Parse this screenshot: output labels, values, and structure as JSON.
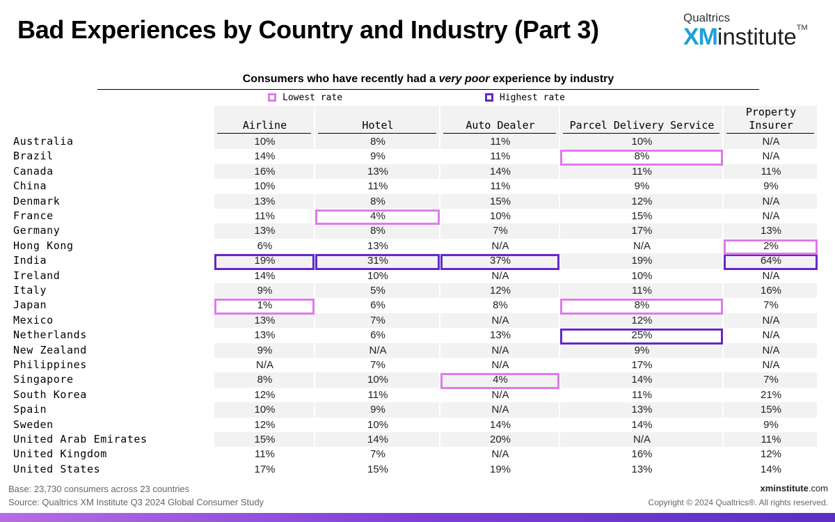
{
  "title": "Bad Experiences by Country and Industry (Part 3)",
  "logo": {
    "top": "Qualtrics",
    "xm": "XM",
    "institute": "institute",
    "tm": "TM"
  },
  "subtitle_pre": "Consumers who have recently had a ",
  "subtitle_em": "very poor",
  "subtitle_post": " experience by industry",
  "legend": {
    "low": "Lowest rate",
    "high": "Highest rate"
  },
  "colors": {
    "low": "#dd7bea",
    "high": "#6527c8",
    "band": "#f2f2f2",
    "bar": "#7d3fd6"
  },
  "chart_data": {
    "type": "table",
    "columns": [
      {
        "line1": "",
        "line2": "Airline"
      },
      {
        "line1": "",
        "line2": "Hotel"
      },
      {
        "line1": "",
        "line2": "Auto Dealer"
      },
      {
        "line1": "",
        "line2": "Parcel Delivery Service"
      },
      {
        "line1": "Property",
        "line2": "Insurer"
      }
    ],
    "rows": [
      {
        "country": "Australia",
        "values": [
          "10%",
          "8%",
          "11%",
          "10%",
          "N/A"
        ]
      },
      {
        "country": "Brazil",
        "values": [
          "14%",
          "9%",
          "11%",
          "8%",
          "N/A"
        ]
      },
      {
        "country": "Canada",
        "values": [
          "16%",
          "13%",
          "14%",
          "11%",
          "11%"
        ]
      },
      {
        "country": "China",
        "values": [
          "10%",
          "11%",
          "11%",
          "9%",
          "9%"
        ]
      },
      {
        "country": "Denmark",
        "values": [
          "13%",
          "8%",
          "15%",
          "12%",
          "N/A"
        ]
      },
      {
        "country": "France",
        "values": [
          "11%",
          "4%",
          "10%",
          "15%",
          "N/A"
        ]
      },
      {
        "country": "Germany",
        "values": [
          "13%",
          "8%",
          "7%",
          "17%",
          "13%"
        ]
      },
      {
        "country": "Hong Kong",
        "values": [
          "6%",
          "13%",
          "N/A",
          "N/A",
          "2%"
        ]
      },
      {
        "country": "India",
        "values": [
          "19%",
          "31%",
          "37%",
          "19%",
          "64%"
        ]
      },
      {
        "country": "Ireland",
        "values": [
          "14%",
          "10%",
          "N/A",
          "10%",
          "N/A"
        ]
      },
      {
        "country": "Italy",
        "values": [
          "9%",
          "5%",
          "12%",
          "11%",
          "16%"
        ]
      },
      {
        "country": "Japan",
        "values": [
          "1%",
          "6%",
          "8%",
          "8%",
          "7%"
        ]
      },
      {
        "country": "Mexico",
        "values": [
          "13%",
          "7%",
          "N/A",
          "12%",
          "N/A"
        ]
      },
      {
        "country": "Netherlands",
        "values": [
          "13%",
          "6%",
          "13%",
          "25%",
          "N/A"
        ]
      },
      {
        "country": "New Zealand",
        "values": [
          "9%",
          "N/A",
          "N/A",
          "9%",
          "N/A"
        ]
      },
      {
        "country": "Philippines",
        "values": [
          "N/A",
          "7%",
          "N/A",
          "17%",
          "N/A"
        ]
      },
      {
        "country": "Singapore",
        "values": [
          "8%",
          "10%",
          "4%",
          "14%",
          "7%"
        ]
      },
      {
        "country": "South Korea",
        "values": [
          "12%",
          "11%",
          "N/A",
          "11%",
          "21%"
        ]
      },
      {
        "country": "Spain",
        "values": [
          "10%",
          "9%",
          "N/A",
          "13%",
          "15%"
        ]
      },
      {
        "country": "Sweden",
        "values": [
          "12%",
          "10%",
          "14%",
          "14%",
          "9%"
        ]
      },
      {
        "country": "United Arab Emirates",
        "values": [
          "15%",
          "14%",
          "20%",
          "N/A",
          "11%"
        ]
      },
      {
        "country": "United Kingdom",
        "values": [
          "11%",
          "7%",
          "N/A",
          "16%",
          "12%"
        ]
      },
      {
        "country": "United States",
        "values": [
          "17%",
          "15%",
          "19%",
          "13%",
          "14%"
        ]
      }
    ],
    "highlights": [
      {
        "row": 8,
        "col": 0,
        "kind": "high"
      },
      {
        "row": 11,
        "col": 0,
        "kind": "low"
      },
      {
        "row": 8,
        "col": 1,
        "kind": "high"
      },
      {
        "row": 5,
        "col": 1,
        "kind": "low"
      },
      {
        "row": 8,
        "col": 2,
        "kind": "high"
      },
      {
        "row": 16,
        "col": 2,
        "kind": "low"
      },
      {
        "row": 13,
        "col": 3,
        "kind": "high"
      },
      {
        "row": 1,
        "col": 3,
        "kind": "low"
      },
      {
        "row": 11,
        "col": 3,
        "kind": "low"
      },
      {
        "row": 8,
        "col": 4,
        "kind": "high"
      },
      {
        "row": 7,
        "col": 4,
        "kind": "low"
      }
    ]
  },
  "footer": {
    "base": "Base: 23,730 consumers across 23 countries",
    "source": "Source: Qualtrics XM Institute Q3 2024 Global Consumer Study",
    "site_bold": "xminstitute",
    "site_rest": ".com",
    "copyright": "Copyright © 2024 Qualtrics®. All rights reserved."
  }
}
